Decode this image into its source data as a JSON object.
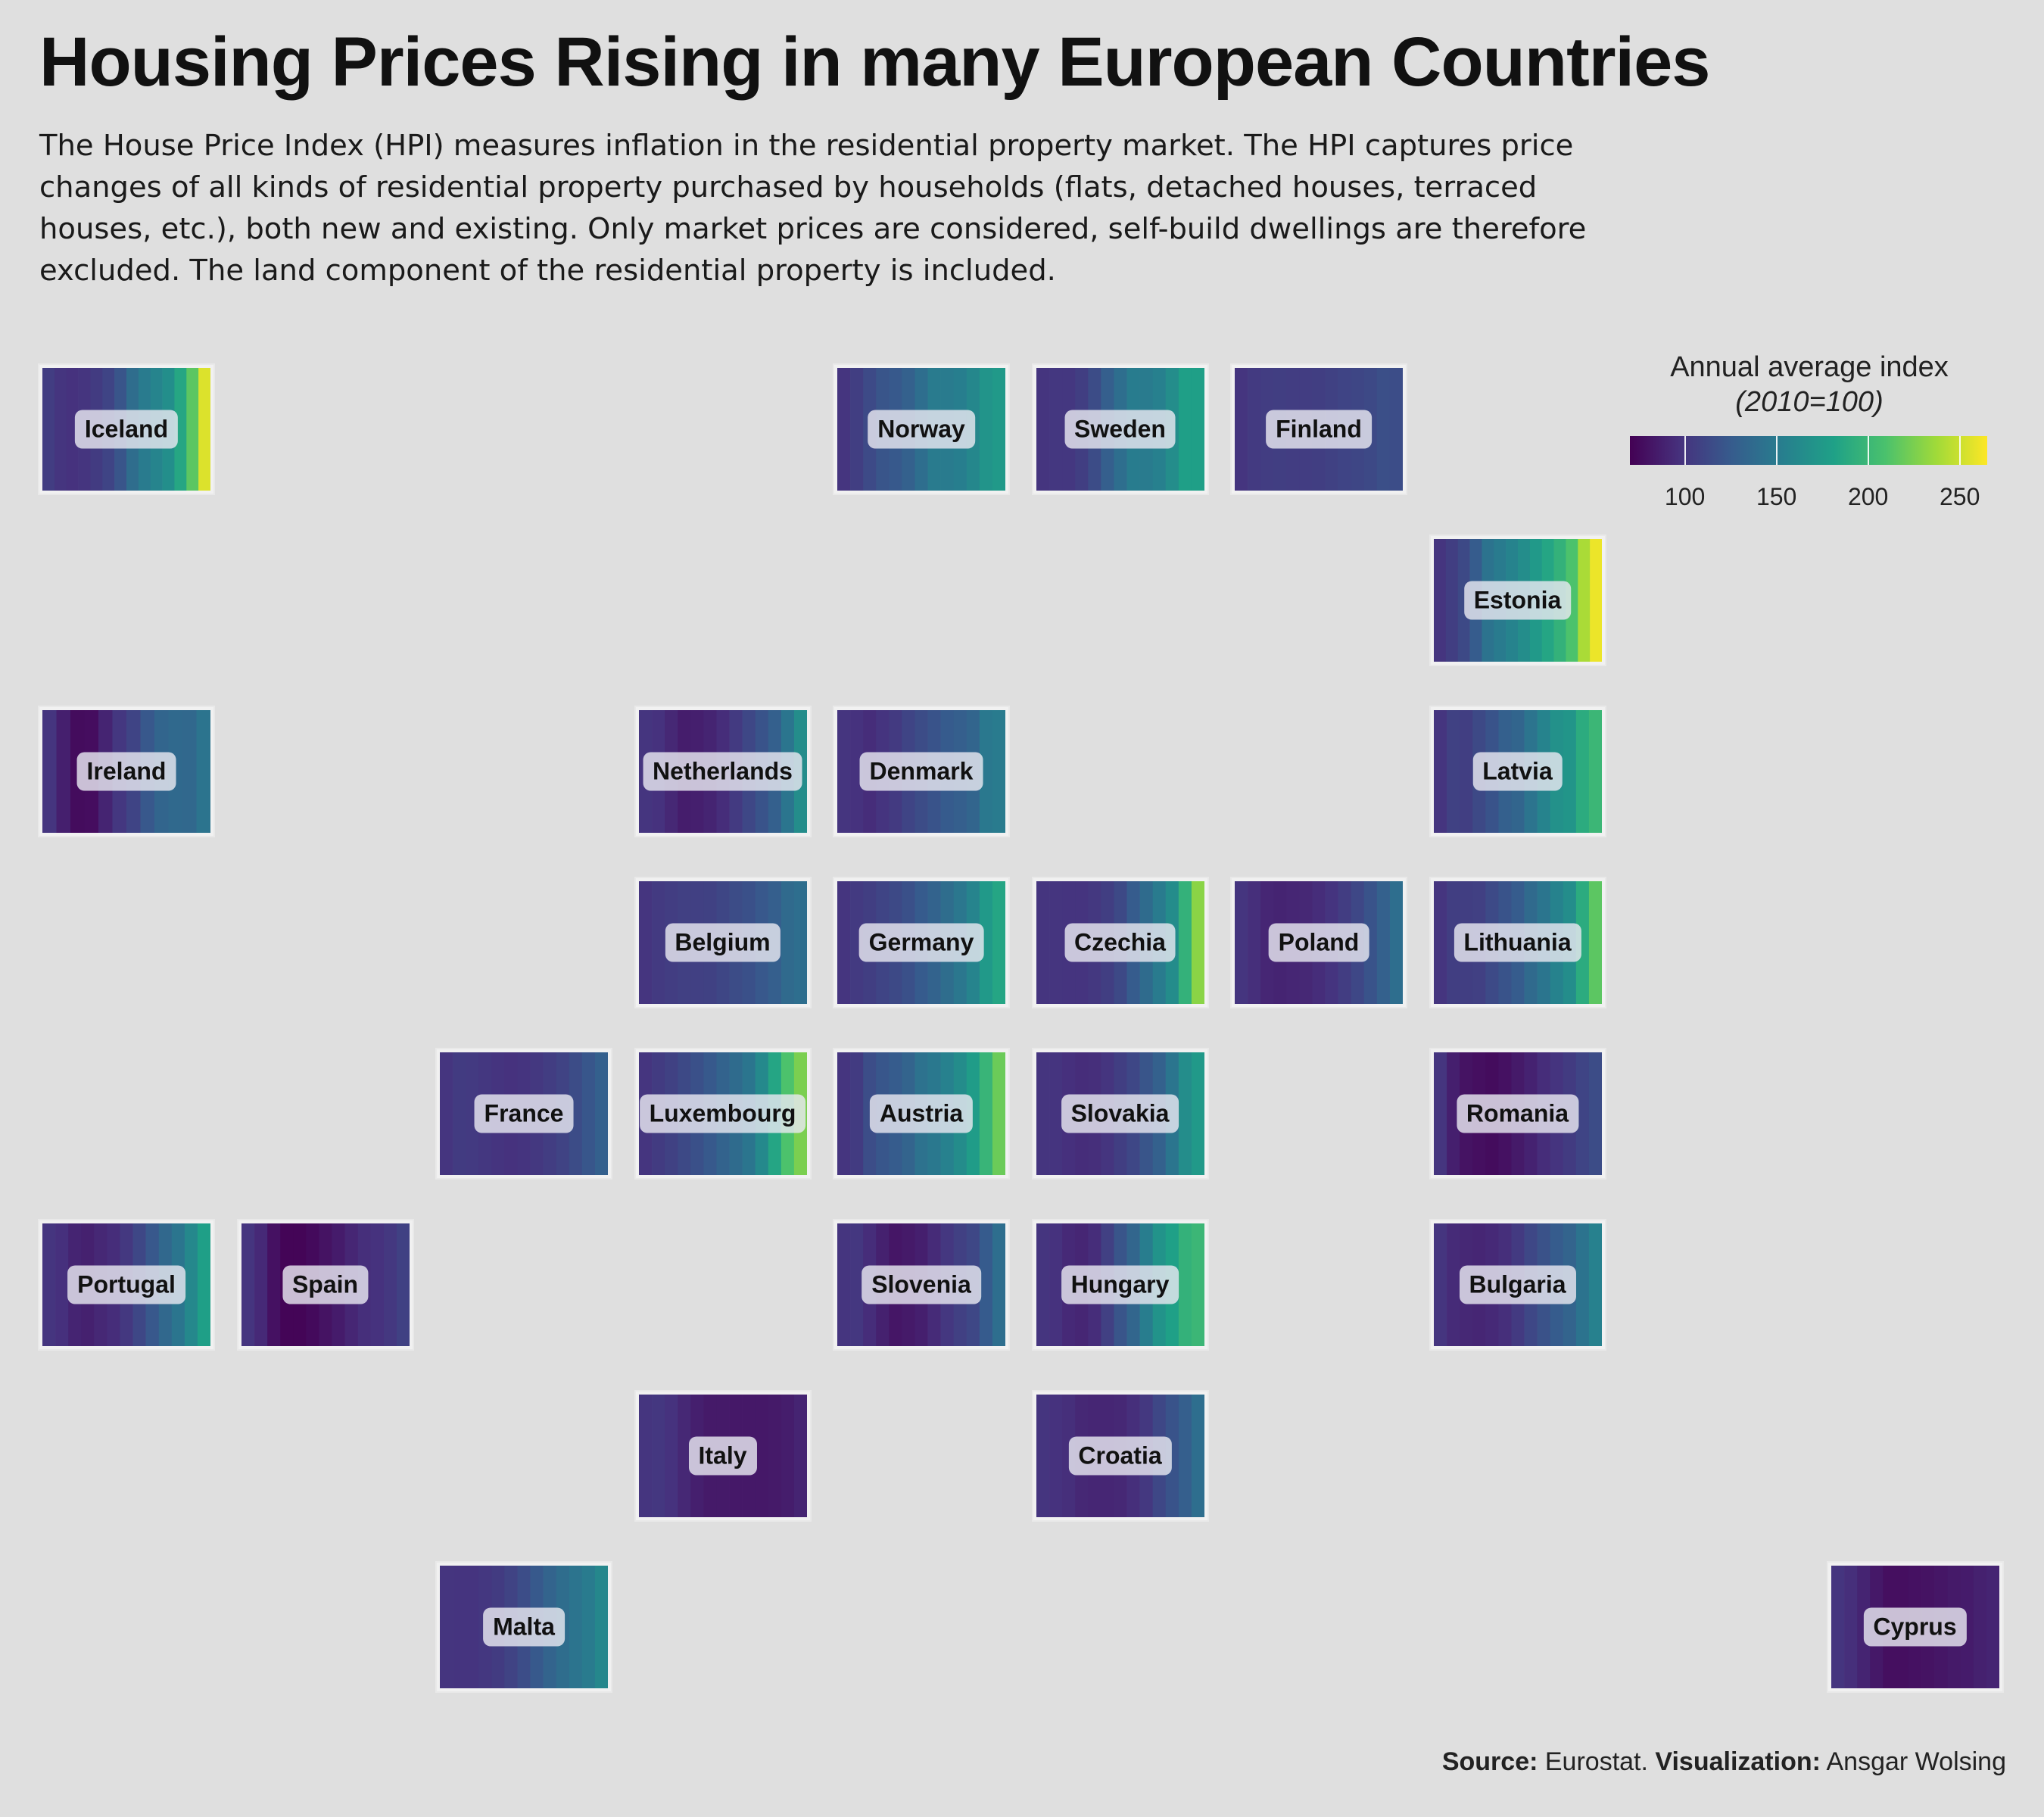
{
  "header": {
    "title": "Housing Prices Rising in many European Countries",
    "subtitle": "The House Price Index (HPI) measures inflation in the residential property market. The HPI captures price changes of all kinds of residential property purchased by households (flats, detached houses, terraced houses, etc.), both new and existing. Only market prices are considered, self-build dwellings are therefore excluded. The land component of the residential property is included."
  },
  "legend": {
    "title_line1": "Annual average index",
    "title_line2": "(2010=100)",
    "min": 70,
    "max": 265,
    "ticks": [
      "100",
      "150",
      "200",
      "250"
    ],
    "colors": [
      "#440154",
      "#46327e",
      "#365c8d",
      "#277f8e",
      "#1fa187",
      "#4ac16d",
      "#a0da39",
      "#fde725"
    ]
  },
  "caption": {
    "source_label": "Source:",
    "source_text": " Eurostat. ",
    "viz_label": "Visualization:",
    "viz_text": " Ansgar Wolsing"
  },
  "chart_data": {
    "type": "heatmap",
    "title": "Housing Prices Rising in many European Countries",
    "xlabel": "",
    "ylabel": "",
    "description": "Tile grid map of Europe; each tile shows yearly HPI values (2010=100) as colour stripes, left to right in chronological order",
    "countries": [
      {
        "name": "Iceland",
        "row": 0,
        "col": 0,
        "values": [
          105,
          100,
          98,
          100,
          104,
          110,
          121,
          139,
          150,
          158,
          166,
          186,
          215,
          255
        ]
      },
      {
        "name": "Norway",
        "row": 0,
        "col": 4,
        "values": [
          100,
          106,
          114,
          121,
          124,
          130,
          140,
          150,
          150,
          153,
          160,
          171,
          175
        ]
      },
      {
        "name": "Sweden",
        "row": 0,
        "col": 5,
        "values": [
          100,
          101,
          101,
          106,
          115,
          128,
          140,
          151,
          150,
          154,
          165,
          180,
          180
        ]
      },
      {
        "name": "Finland",
        "row": 0,
        "col": 6,
        "values": [
          100,
          103,
          105,
          106,
          105,
          105,
          106,
          108,
          110,
          111,
          113,
          117,
          116
        ]
      },
      {
        "name": "Estonia",
        "row": 1,
        "col": 7,
        "values": [
          100,
          106,
          113,
          126,
          144,
          150,
          157,
          165,
          175,
          185,
          195,
          210,
          240,
          260
        ]
      },
      {
        "name": "Ireland",
        "row": 2,
        "col": 0,
        "values": [
          100,
          87,
          76,
          77,
          90,
          101,
          110,
          123,
          133,
          136,
          135,
          145
        ]
      },
      {
        "name": "Netherlands",
        "row": 2,
        "col": 3,
        "values": [
          100,
          98,
          92,
          86,
          87,
          90,
          95,
          103,
          112,
          120,
          129,
          146,
          165
        ]
      },
      {
        "name": "Denmark",
        "row": 2,
        "col": 4,
        "values": [
          100,
          98,
          95,
          99,
          103,
          110,
          115,
          120,
          125,
          128,
          133,
          148,
          150
        ]
      },
      {
        "name": "Latvia",
        "row": 2,
        "col": 7,
        "values": [
          100,
          108,
          106,
          113,
          120,
          129,
          133,
          145,
          157,
          168,
          172,
          190,
          200
        ]
      },
      {
        "name": "Belgium",
        "row": 3,
        "col": 3,
        "values": [
          100,
          103,
          105,
          107,
          107,
          108,
          111,
          115,
          118,
          123,
          128,
          137,
          140
        ]
      },
      {
        "name": "Germany",
        "row": 3,
        "col": 4,
        "values": [
          100,
          103,
          106,
          110,
          113,
          118,
          125,
          131,
          139,
          147,
          158,
          175,
          185
        ]
      },
      {
        "name": "Czechia",
        "row": 3,
        "col": 5,
        "values": [
          100,
          100,
          99,
          99,
          102,
          106,
          113,
          126,
          138,
          150,
          164,
          195,
          230
        ]
      },
      {
        "name": "Poland",
        "row": 3,
        "col": 6,
        "values": [
          100,
          96,
          91,
          90,
          91,
          92,
          95,
          99,
          105,
          112,
          120,
          130,
          140
        ]
      },
      {
        "name": "Lithuania",
        "row": 3,
        "col": 7,
        "values": [
          100,
          106,
          106,
          107,
          114,
          120,
          126,
          137,
          146,
          156,
          165,
          190,
          215
        ]
      },
      {
        "name": "France",
        "row": 4,
        "col": 2,
        "values": [
          100,
          104,
          103,
          101,
          99,
          98,
          99,
          102,
          105,
          109,
          115,
          122,
          129
        ]
      },
      {
        "name": "Luxembourg",
        "row": 4,
        "col": 3,
        "values": [
          100,
          104,
          108,
          113,
          118,
          124,
          131,
          138,
          146,
          162,
          185,
          210,
          225
        ]
      },
      {
        "name": "Austria",
        "row": 4,
        "col": 4,
        "values": [
          100,
          104,
          116,
          122,
          126,
          132,
          143,
          148,
          155,
          164,
          177,
          198,
          220
        ]
      },
      {
        "name": "Slovakia",
        "row": 4,
        "col": 5,
        "values": [
          100,
          99,
          97,
          95,
          96,
          100,
          106,
          112,
          121,
          130,
          146,
          165,
          175
        ]
      },
      {
        "name": "Romania",
        "row": 4,
        "col": 7,
        "values": [
          100,
          87,
          80,
          78,
          76,
          79,
          84,
          89,
          95,
          99,
          104,
          110,
          115
        ]
      },
      {
        "name": "Portugal",
        "row": 5,
        "col": 0,
        "values": [
          100,
          97,
          90,
          88,
          92,
          95,
          102,
          112,
          123,
          135,
          146,
          161,
          180
        ]
      },
      {
        "name": "Spain",
        "row": 5,
        "col": 1,
        "values": [
          100,
          93,
          79,
          72,
          72,
          75,
          80,
          85,
          91,
          96,
          98,
          102,
          108
        ]
      },
      {
        "name": "Slovenia",
        "row": 5,
        "col": 4,
        "values": [
          100,
          101,
          95,
          88,
          82,
          84,
          87,
          94,
          101,
          107,
          112,
          125,
          140
        ]
      },
      {
        "name": "Hungary",
        "row": 5,
        "col": 5,
        "values": [
          100,
          98,
          93,
          91,
          95,
          107,
          121,
          134,
          152,
          170,
          181,
          195,
          200
        ]
      },
      {
        "name": "Bulgaria",
        "row": 5,
        "col": 7,
        "values": [
          100,
          94,
          92,
          91,
          93,
          96,
          103,
          112,
          119,
          126,
          132,
          144,
          155
        ]
      },
      {
        "name": "Italy",
        "row": 6,
        "col": 3,
        "values": [
          100,
          101,
          98,
          92,
          87,
          84,
          84,
          83,
          83,
          83,
          84,
          86,
          90
        ]
      },
      {
        "name": "Croatia",
        "row": 6,
        "col": 5,
        "values": [
          100,
          98,
          96,
          92,
          91,
          91,
          92,
          96,
          102,
          112,
          120,
          128,
          140
        ]
      },
      {
        "name": "Malta",
        "row": 7,
        "col": 2,
        "values": [
          100,
          99,
          99,
          101,
          104,
          109,
          116,
          124,
          132,
          139,
          145,
          150,
          160
        ]
      },
      {
        "name": "Cyprus",
        "row": 7,
        "col": 9,
        "values": [
          100,
          96,
          90,
          83,
          78,
          78,
          79,
          80,
          82,
          84,
          85,
          88,
          90
        ]
      }
    ]
  }
}
